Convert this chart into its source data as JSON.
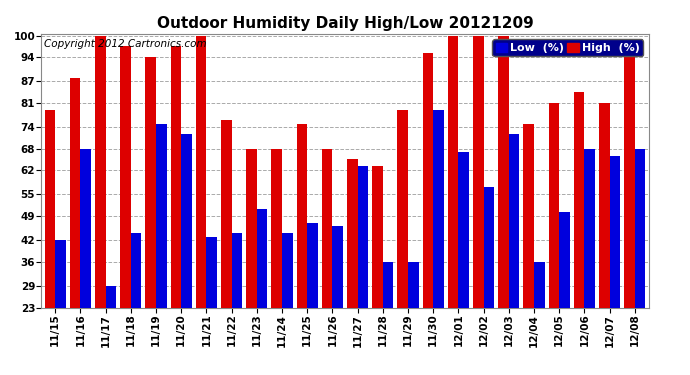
{
  "title": "Outdoor Humidity Daily High/Low 20121209",
  "copyright": "Copyright 2012 Cartronics.com",
  "legend_low": "Low  (%)",
  "legend_high": "High  (%)",
  "low_color": "#0000dd",
  "high_color": "#dd0000",
  "bg_color": "#ffffff",
  "plot_bg_color": "#ffffff",
  "grid_color": "#aaaaaa",
  "categories": [
    "11/15",
    "11/16",
    "11/17",
    "11/18",
    "11/19",
    "11/20",
    "11/21",
    "11/22",
    "11/23",
    "11/24",
    "11/25",
    "11/26",
    "11/27",
    "11/28",
    "11/29",
    "11/30",
    "12/01",
    "12/02",
    "12/03",
    "12/04",
    "12/05",
    "12/06",
    "12/07",
    "12/08"
  ],
  "high_values": [
    79,
    88,
    100,
    97,
    94,
    97,
    100,
    76,
    68,
    68,
    75,
    68,
    65,
    63,
    79,
    95,
    100,
    100,
    100,
    75,
    81,
    84,
    81,
    95
  ],
  "low_values": [
    42,
    68,
    29,
    44,
    75,
    72,
    43,
    44,
    51,
    44,
    47,
    46,
    63,
    36,
    36,
    79,
    67,
    57,
    72,
    36,
    50,
    68,
    66,
    68
  ],
  "ymin": 23,
  "ymax": 100,
  "yticks": [
    23,
    29,
    36,
    42,
    49,
    55,
    62,
    68,
    74,
    81,
    87,
    94,
    100
  ],
  "title_fontsize": 11,
  "tick_fontsize": 7.5,
  "legend_fontsize": 8,
  "copyright_fontsize": 7.5
}
